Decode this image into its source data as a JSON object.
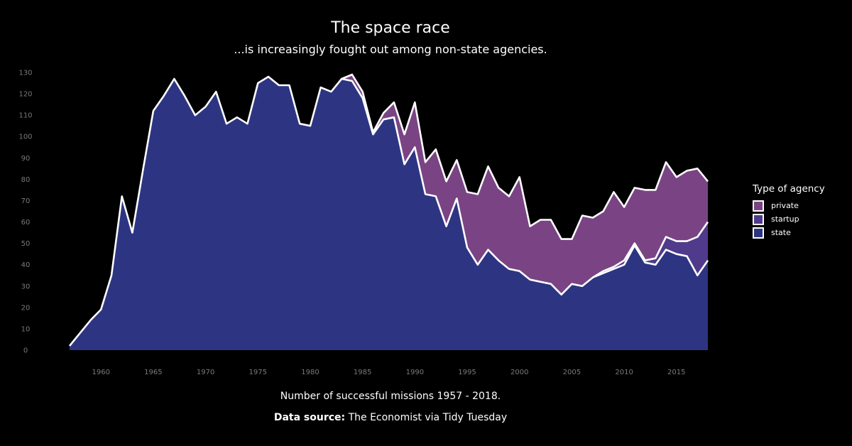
{
  "chart_data": {
    "type": "area",
    "stacked": true,
    "title": "The space race",
    "subtitle": "...is increasingly fought out among non-state agencies.",
    "caption": "Number of successful missions 1957 - 2018.",
    "source_label": "Data source:",
    "source_text": " The Economist via Tidy Tuesday",
    "legend_title": "Type of agency",
    "legend_position": "right",
    "xlim": [
      1957,
      2018
    ],
    "ylim": [
      0,
      130
    ],
    "x_ticks": [
      1960,
      1965,
      1970,
      1975,
      1980,
      1985,
      1990,
      1995,
      2000,
      2005,
      2010,
      2015
    ],
    "y_ticks": [
      0,
      10,
      20,
      30,
      40,
      50,
      60,
      70,
      80,
      90,
      100,
      110,
      120,
      130
    ],
    "x": [
      1957,
      1958,
      1959,
      1960,
      1961,
      1962,
      1963,
      1964,
      1965,
      1966,
      1967,
      1968,
      1969,
      1970,
      1971,
      1972,
      1973,
      1974,
      1975,
      1976,
      1977,
      1978,
      1979,
      1980,
      1981,
      1982,
      1983,
      1984,
      1985,
      1986,
      1987,
      1988,
      1989,
      1990,
      1991,
      1992,
      1993,
      1994,
      1995,
      1996,
      1997,
      1998,
      1999,
      2000,
      2001,
      2002,
      2003,
      2004,
      2005,
      2006,
      2007,
      2008,
      2009,
      2010,
      2011,
      2012,
      2013,
      2014,
      2015,
      2016,
      2017,
      2018
    ],
    "series": [
      {
        "name": "state",
        "color": "#2d3583",
        "values": [
          2,
          8,
          14,
          19,
          35,
          72,
          55,
          84,
          112,
          119,
          127,
          119,
          110,
          114,
          121,
          106,
          109,
          106,
          125,
          128,
          124,
          124,
          106,
          105,
          123,
          121,
          127,
          126,
          118,
          101,
          108,
          109,
          87,
          95,
          73,
          72,
          58,
          71,
          48,
          40,
          47,
          42,
          38,
          37,
          33,
          32,
          31,
          26,
          31,
          30,
          34,
          36,
          38,
          40,
          49,
          41,
          40,
          47,
          45,
          44,
          35,
          42
        ]
      },
      {
        "name": "startup",
        "color": "#503a8b",
        "values": [
          0,
          0,
          0,
          0,
          0,
          0,
          0,
          0,
          0,
          0,
          0,
          0,
          0,
          0,
          0,
          0,
          0,
          0,
          0,
          0,
          0,
          0,
          0,
          0,
          0,
          0,
          0,
          0,
          0,
          0,
          0,
          0,
          0,
          0,
          0,
          0,
          0,
          0,
          0,
          0,
          0,
          0,
          0,
          0,
          0,
          0,
          0,
          0,
          0,
          0,
          0,
          1,
          1,
          2,
          1,
          1,
          3,
          6,
          6,
          7,
          18,
          18
        ]
      },
      {
        "name": "private",
        "color": "#7a4484",
        "values": [
          0,
          0,
          0,
          0,
          0,
          0,
          0,
          0,
          0,
          0,
          0,
          0,
          0,
          0,
          0,
          0,
          0,
          0,
          0,
          0,
          0,
          0,
          0,
          0,
          0,
          0,
          0,
          3,
          3,
          1,
          3,
          7,
          14,
          21,
          15,
          22,
          21,
          18,
          26,
          33,
          39,
          34,
          34,
          44,
          25,
          29,
          30,
          26,
          21,
          33,
          28,
          28,
          35,
          25,
          26,
          33,
          32,
          35,
          30,
          33,
          32,
          19
        ]
      }
    ],
    "legend_order": [
      "private",
      "startup",
      "state"
    ]
  }
}
